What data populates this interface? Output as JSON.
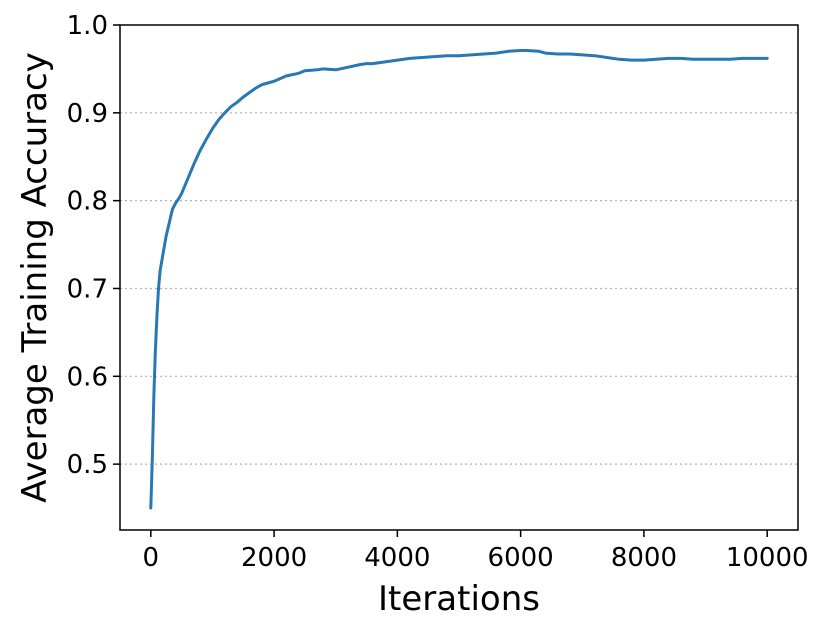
{
  "chart_data": {
    "type": "line",
    "title": "",
    "xlabel": "Iterations",
    "ylabel": "Average Training Accuracy",
    "xlim": [
      -500,
      10500
    ],
    "ylim": [
      0.425,
      1.0
    ],
    "x_ticks": [
      0,
      2000,
      4000,
      6000,
      8000,
      10000
    ],
    "x_tick_labels": [
      "0",
      "2000",
      "4000",
      "6000",
      "8000",
      "10000"
    ],
    "y_ticks": [
      0.5,
      0.6,
      0.7,
      0.8,
      0.9,
      1.0
    ],
    "y_tick_labels": [
      "0.5",
      "0.6",
      "0.7",
      "0.8",
      "0.9",
      "1.0"
    ],
    "grid": "horizontal dotted",
    "series": [
      {
        "color": "#2878b5",
        "x": [
          0,
          25,
          50,
          75,
          100,
          125,
          150,
          175,
          200,
          250,
          300,
          350,
          400,
          450,
          500,
          600,
          700,
          800,
          900,
          1000,
          1100,
          1200,
          1300,
          1400,
          1500,
          1600,
          1700,
          1800,
          1900,
          2000,
          2200,
          2400,
          2500,
          2700,
          2800,
          3000,
          3200,
          3400,
          3500,
          3600,
          3800,
          4000,
          4200,
          4400,
          4600,
          4800,
          5000,
          5200,
          5400,
          5600,
          5800,
          6000,
          6100,
          6300,
          6400,
          6600,
          6800,
          7000,
          7200,
          7400,
          7600,
          7800,
          8000,
          8200,
          8400,
          8600,
          8800,
          9000,
          9200,
          9400,
          9600,
          9800,
          10000
        ],
        "y": [
          0.45,
          0.51,
          0.58,
          0.63,
          0.67,
          0.7,
          0.72,
          0.73,
          0.74,
          0.76,
          0.775,
          0.79,
          0.797,
          0.802,
          0.808,
          0.825,
          0.842,
          0.857,
          0.87,
          0.882,
          0.892,
          0.9,
          0.907,
          0.912,
          0.918,
          0.923,
          0.928,
          0.932,
          0.934,
          0.936,
          0.942,
          0.945,
          0.948,
          0.949,
          0.95,
          0.949,
          0.952,
          0.955,
          0.956,
          0.956,
          0.958,
          0.96,
          0.962,
          0.963,
          0.964,
          0.965,
          0.965,
          0.966,
          0.967,
          0.968,
          0.97,
          0.971,
          0.971,
          0.97,
          0.968,
          0.967,
          0.967,
          0.966,
          0.965,
          0.963,
          0.961,
          0.96,
          0.96,
          0.961,
          0.962,
          0.962,
          0.961,
          0.961,
          0.961,
          0.961,
          0.962,
          0.962,
          0.962
        ]
      }
    ]
  }
}
